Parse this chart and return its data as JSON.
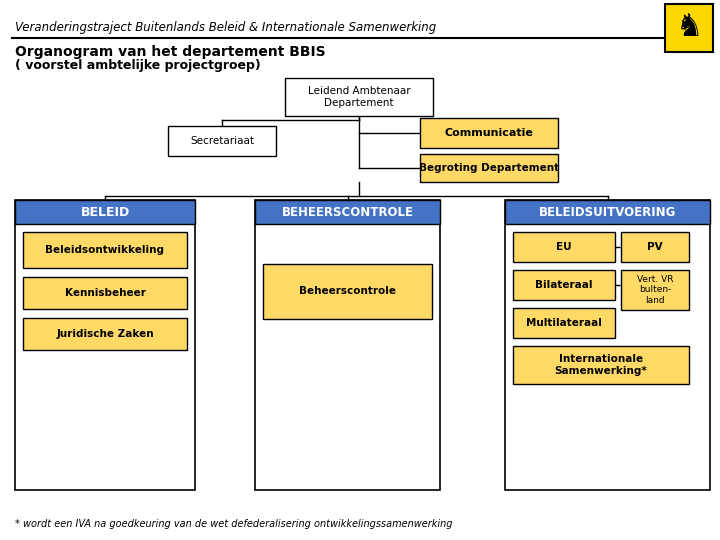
{
  "title_line1": "Veranderingstraject Buitenlands Beleid & Internationale Samenwerking",
  "title_line2": "Organogram van het departement BBIS",
  "title_line3": "( voorstel ambtelijke projectgroep)",
  "footnote": "* wordt een IVA na goedkeuring van de wet defederalisering ontwikkelingssamenwerking",
  "bg_color": "#FFFFFF",
  "box_white": "#FFFFFF",
  "box_yellow": "#FFD966",
  "box_blue": "#4472C4",
  "border_color": "#000000",
  "text_dark": "#000000",
  "text_white": "#FFFFFF"
}
